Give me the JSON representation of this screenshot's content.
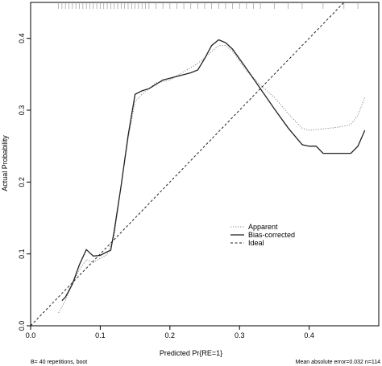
{
  "chart_data": {
    "type": "line",
    "xlabel": "Predicted Pr{RE=1}",
    "ylabel": "Actual Probability",
    "xlim": [
      0,
      0.5
    ],
    "ylim": [
      0,
      0.45
    ],
    "x_ticks": [
      "0.0",
      "0.1",
      "0.2",
      "0.3",
      "0.4"
    ],
    "y_ticks": [
      "0.0",
      "0.1",
      "0.2",
      "0.3",
      "0.4"
    ],
    "legend_position": "center-right",
    "series": [
      {
        "name": "Apparent",
        "style": "dotted",
        "color": "#888888",
        "points": [
          [
            0.04,
            0.018
          ],
          [
            0.05,
            0.035
          ],
          [
            0.06,
            0.058
          ],
          [
            0.07,
            0.078
          ],
          [
            0.08,
            0.092
          ],
          [
            0.09,
            0.088
          ],
          [
            0.1,
            0.094
          ],
          [
            0.11,
            0.099
          ],
          [
            0.12,
            0.125
          ],
          [
            0.13,
            0.195
          ],
          [
            0.14,
            0.26
          ],
          [
            0.15,
            0.312
          ],
          [
            0.16,
            0.322
          ],
          [
            0.18,
            0.338
          ],
          [
            0.2,
            0.342
          ],
          [
            0.24,
            0.365
          ],
          [
            0.27,
            0.39
          ],
          [
            0.28,
            0.39
          ],
          [
            0.29,
            0.382
          ],
          [
            0.31,
            0.355
          ],
          [
            0.33,
            0.335
          ],
          [
            0.35,
            0.318
          ],
          [
            0.37,
            0.295
          ],
          [
            0.39,
            0.275
          ],
          [
            0.4,
            0.272
          ],
          [
            0.42,
            0.274
          ],
          [
            0.44,
            0.276
          ],
          [
            0.46,
            0.28
          ],
          [
            0.47,
            0.293
          ],
          [
            0.48,
            0.318
          ]
        ]
      },
      {
        "name": "Bias-corrected",
        "style": "solid",
        "color": "#222222",
        "points": [
          [
            0.045,
            0.035
          ],
          [
            0.05,
            0.04
          ],
          [
            0.06,
            0.058
          ],
          [
            0.07,
            0.085
          ],
          [
            0.08,
            0.106
          ],
          [
            0.09,
            0.097
          ],
          [
            0.1,
            0.098
          ],
          [
            0.11,
            0.103
          ],
          [
            0.115,
            0.105
          ],
          [
            0.12,
            0.132
          ],
          [
            0.13,
            0.195
          ],
          [
            0.14,
            0.265
          ],
          [
            0.15,
            0.322
          ],
          [
            0.16,
            0.327
          ],
          [
            0.17,
            0.33
          ],
          [
            0.19,
            0.342
          ],
          [
            0.21,
            0.347
          ],
          [
            0.23,
            0.352
          ],
          [
            0.24,
            0.356
          ],
          [
            0.25,
            0.372
          ],
          [
            0.26,
            0.39
          ],
          [
            0.27,
            0.398
          ],
          [
            0.28,
            0.394
          ],
          [
            0.29,
            0.385
          ],
          [
            0.31,
            0.358
          ],
          [
            0.33,
            0.33
          ],
          [
            0.35,
            0.302
          ],
          [
            0.37,
            0.275
          ],
          [
            0.39,
            0.252
          ],
          [
            0.4,
            0.25
          ],
          [
            0.41,
            0.25
          ],
          [
            0.42,
            0.24
          ],
          [
            0.45,
            0.24
          ],
          [
            0.46,
            0.24
          ],
          [
            0.47,
            0.25
          ],
          [
            0.48,
            0.272
          ]
        ]
      },
      {
        "name": "Ideal",
        "style": "dashed",
        "color": "#222222",
        "points": [
          [
            0,
            0
          ],
          [
            0.5,
            0.5
          ]
        ]
      }
    ],
    "rug_x": [
      0.04,
      0.045,
      0.05,
      0.055,
      0.06,
      0.065,
      0.07,
      0.075,
      0.08,
      0.085,
      0.09,
      0.095,
      0.1,
      0.105,
      0.11,
      0.115,
      0.12,
      0.125,
      0.13,
      0.135,
      0.14,
      0.145,
      0.15,
      0.155,
      0.16,
      0.165,
      0.17,
      0.18,
      0.19,
      0.2,
      0.21,
      0.22,
      0.23,
      0.24,
      0.25,
      0.26,
      0.27,
      0.28,
      0.29,
      0.3,
      0.31,
      0.32,
      0.33,
      0.35,
      0.37,
      0.39,
      0.42,
      0.45,
      0.47
    ],
    "footnote_left": "B= 40 repetitions, boot",
    "footnote_right": "Mean absolute error=0.032 n=114"
  }
}
